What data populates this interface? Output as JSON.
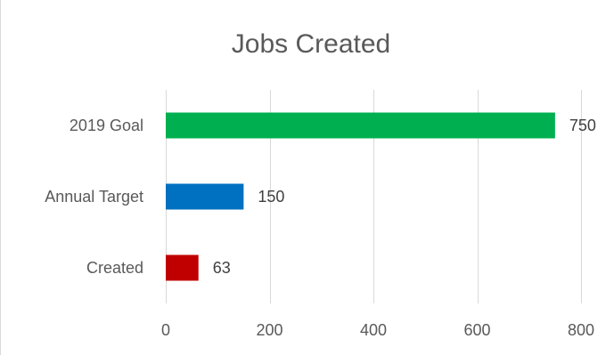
{
  "chart_data": {
    "type": "bar",
    "orientation": "horizontal",
    "title": "Jobs Created",
    "xlabel": "",
    "ylabel": "",
    "categories": [
      "2019 Goal",
      "Annual Target",
      "Created"
    ],
    "values": [
      750,
      150,
      63
    ],
    "colors": [
      "#00b050",
      "#0070c0",
      "#c00000"
    ],
    "xlim": [
      0,
      800
    ],
    "xticks": [
      0,
      200,
      400,
      600,
      800
    ],
    "xtick_labels": [
      "0",
      "200",
      "400",
      "600",
      "800"
    ],
    "data_labels": [
      "750",
      "150",
      "63"
    ],
    "grid": true,
    "legend": "none"
  }
}
